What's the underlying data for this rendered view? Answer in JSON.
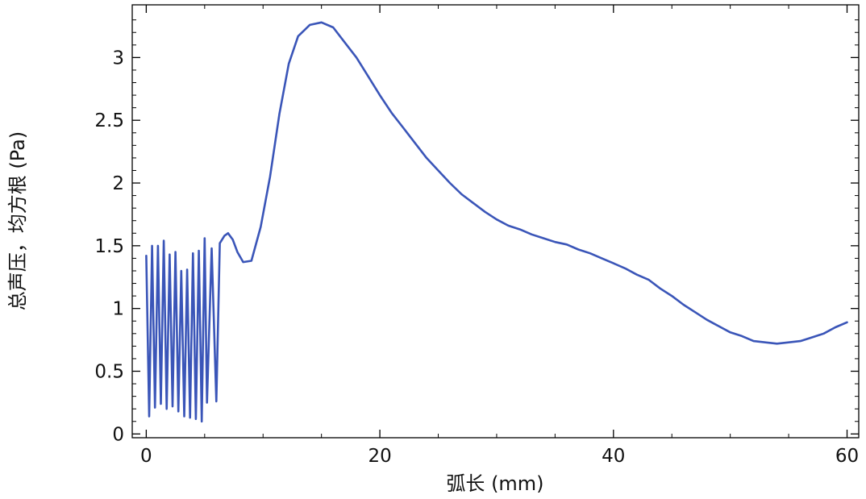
{
  "chart_data": {
    "type": "line",
    "title": "",
    "xlabel": "弧长 (mm)",
    "ylabel": "总声压，均方根 (Pa)",
    "xlim": [
      -1.2,
      61
    ],
    "ylim": [
      -0.03,
      3.42
    ],
    "x_ticks": [
      0,
      20,
      40,
      60
    ],
    "y_ticks": [
      0,
      0.5,
      1,
      1.5,
      2,
      2.5,
      3
    ],
    "x_tick_labels": [
      "0",
      "20",
      "40",
      "60"
    ],
    "y_tick_labels": [
      "0",
      "0.5",
      "1",
      "1.5",
      "2",
      "2.5",
      "3"
    ],
    "grid": false,
    "legend": "none",
    "series": [
      {
        "color": "#3a55b8",
        "x": [
          0,
          0.25,
          0.5,
          0.75,
          1.0,
          1.25,
          1.5,
          1.75,
          2.0,
          2.25,
          2.5,
          2.75,
          3.0,
          3.25,
          3.5,
          3.75,
          4.0,
          4.25,
          4.5,
          4.75,
          5.0,
          5.2,
          5.6,
          6.0,
          6.3,
          6.7,
          7.0,
          7.4,
          7.8,
          8.3,
          9.0,
          9.8,
          10.6,
          11.4,
          12.2,
          13.0,
          14.0,
          15.0,
          16.0,
          17.0,
          18.0,
          19.0,
          20.0,
          21.0,
          22.0,
          23.0,
          24.0,
          25.0,
          26.0,
          27.0,
          28.0,
          29.0,
          30.0,
          31.0,
          32.0,
          33.0,
          34.0,
          35.0,
          36.0,
          37.0,
          38.0,
          39.0,
          40.0,
          41.0,
          42.0,
          43.0,
          44.0,
          45.0,
          46.0,
          47.0,
          48.0,
          49.0,
          50.0,
          51.0,
          52.0,
          53.0,
          54.0,
          55.0,
          56.0,
          57.0,
          58.0,
          59.0,
          60.0
        ],
        "y": [
          1.42,
          0.14,
          1.5,
          0.21,
          1.5,
          0.24,
          1.54,
          0.2,
          1.43,
          0.22,
          1.45,
          0.18,
          1.3,
          0.14,
          1.31,
          0.13,
          1.44,
          0.12,
          1.46,
          0.1,
          1.56,
          0.25,
          1.48,
          0.26,
          1.52,
          1.58,
          1.6,
          1.55,
          1.45,
          1.37,
          1.38,
          1.65,
          2.05,
          2.55,
          2.95,
          3.17,
          3.26,
          3.28,
          3.24,
          3.12,
          3.0,
          2.85,
          2.7,
          2.56,
          2.44,
          2.32,
          2.2,
          2.1,
          2.0,
          1.91,
          1.84,
          1.77,
          1.71,
          1.66,
          1.63,
          1.59,
          1.56,
          1.53,
          1.51,
          1.47,
          1.44,
          1.4,
          1.36,
          1.32,
          1.27,
          1.23,
          1.16,
          1.1,
          1.03,
          0.97,
          0.91,
          0.86,
          0.81,
          0.78,
          0.74,
          0.73,
          0.72,
          0.73,
          0.74,
          0.77,
          0.8,
          0.85,
          0.89
        ]
      }
    ]
  }
}
